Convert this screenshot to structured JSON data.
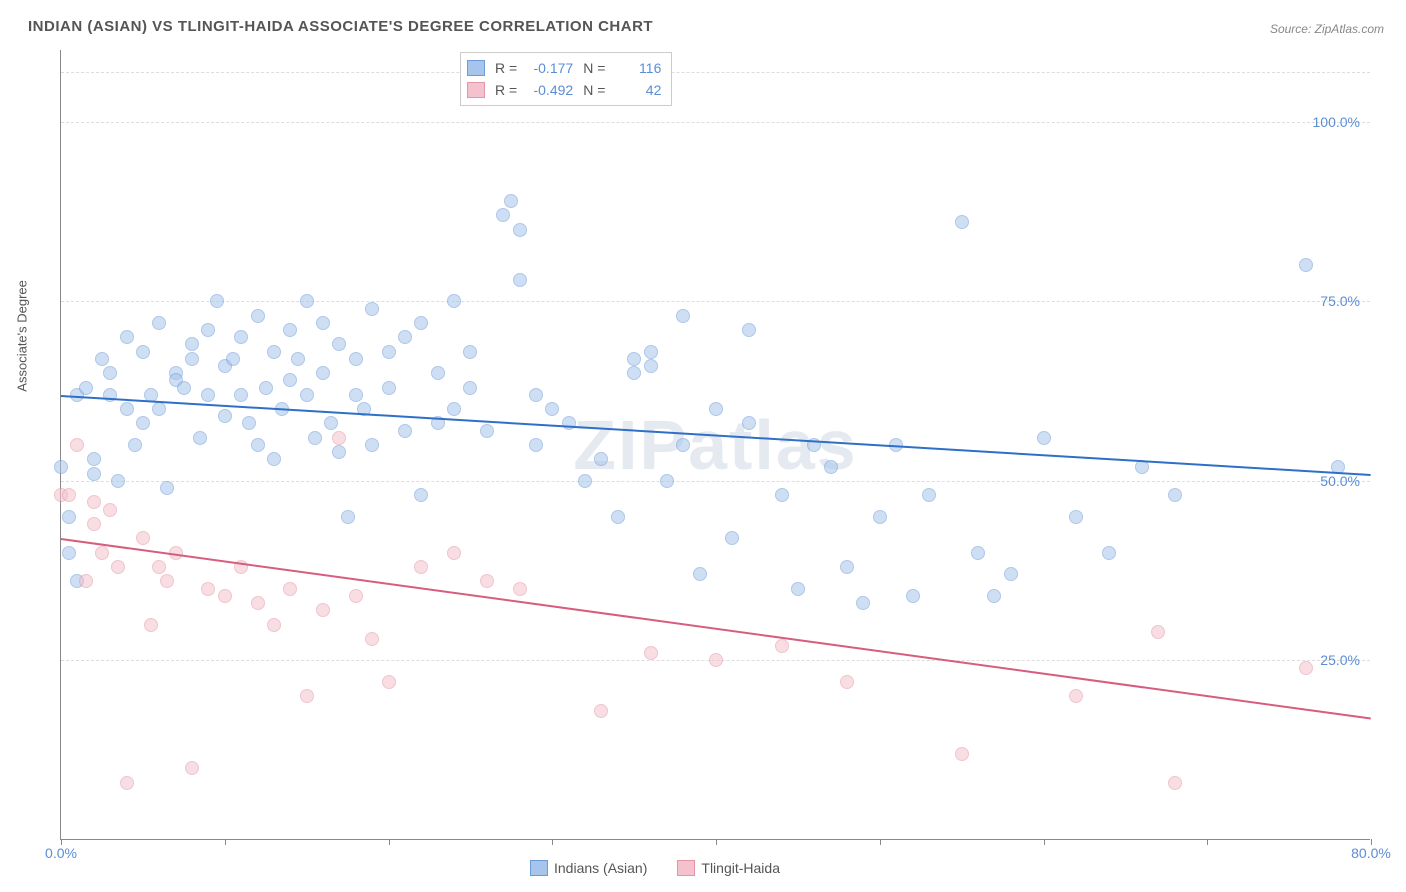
{
  "title": "INDIAN (ASIAN) VS TLINGIT-HAIDA ASSOCIATE'S DEGREE CORRELATION CHART",
  "source_prefix": "Source: ",
  "source_name": "ZipAtlas.com",
  "y_axis_label": "Associate's Degree",
  "watermark": "ZIPatlas",
  "chart": {
    "type": "scatter",
    "xlim": [
      0,
      80
    ],
    "ylim": [
      0,
      110
    ],
    "x_ticks": [
      0,
      10,
      20,
      30,
      40,
      50,
      60,
      70,
      80
    ],
    "x_tick_labels": {
      "0": "0.0%",
      "80": "80.0%"
    },
    "y_ticks": [
      25,
      50,
      75,
      100
    ],
    "y_tick_labels": {
      "25": "25.0%",
      "50": "50.0%",
      "75": "75.0%",
      "100": "100.0%"
    },
    "background_color": "#ffffff",
    "grid_color": "#dddddd",
    "axis_color": "#888888",
    "tick_label_color": "#5b8dd6",
    "point_radius": 7,
    "point_opacity": 0.55
  },
  "series": [
    {
      "name": "Indians (Asian)",
      "color_fill": "#a7c5ec",
      "color_stroke": "#6d9bd8",
      "trend_color": "#2f6fc7",
      "R": "-0.177",
      "N": "116",
      "trend": {
        "x1": 0,
        "y1": 62,
        "x2": 80,
        "y2": 51
      },
      "points": [
        [
          0,
          52
        ],
        [
          0.5,
          45
        ],
        [
          0.5,
          40
        ],
        [
          1,
          62
        ],
        [
          1,
          36
        ],
        [
          1.5,
          63
        ],
        [
          2,
          53
        ],
        [
          2,
          51
        ],
        [
          2.5,
          67
        ],
        [
          3,
          62
        ],
        [
          3,
          65
        ],
        [
          3.5,
          50
        ],
        [
          4,
          70
        ],
        [
          4,
          60
        ],
        [
          4.5,
          55
        ],
        [
          5,
          68
        ],
        [
          5,
          58
        ],
        [
          5.5,
          62
        ],
        [
          6,
          72
        ],
        [
          6,
          60
        ],
        [
          6.5,
          49
        ],
        [
          7,
          65
        ],
        [
          7,
          64
        ],
        [
          7.5,
          63
        ],
        [
          8,
          67
        ],
        [
          8,
          69
        ],
        [
          8.5,
          56
        ],
        [
          9,
          71
        ],
        [
          9,
          62
        ],
        [
          9.5,
          75
        ],
        [
          10,
          59
        ],
        [
          10,
          66
        ],
        [
          10.5,
          67
        ],
        [
          11,
          62
        ],
        [
          11,
          70
        ],
        [
          11.5,
          58
        ],
        [
          12,
          73
        ],
        [
          12,
          55
        ],
        [
          12.5,
          63
        ],
        [
          13,
          68
        ],
        [
          13,
          53
        ],
        [
          13.5,
          60
        ],
        [
          14,
          71
        ],
        [
          14,
          64
        ],
        [
          14.5,
          67
        ],
        [
          15,
          75
        ],
        [
          15,
          62
        ],
        [
          15.5,
          56
        ],
        [
          16,
          72
        ],
        [
          16,
          65
        ],
        [
          16.5,
          58
        ],
        [
          17,
          69
        ],
        [
          17,
          54
        ],
        [
          17.5,
          45
        ],
        [
          18,
          62
        ],
        [
          18,
          67
        ],
        [
          18.5,
          60
        ],
        [
          19,
          74
        ],
        [
          19,
          55
        ],
        [
          20,
          68
        ],
        [
          20,
          63
        ],
        [
          21,
          57
        ],
        [
          21,
          70
        ],
        [
          22,
          72
        ],
        [
          22,
          48
        ],
        [
          23,
          65
        ],
        [
          23,
          58
        ],
        [
          24,
          75
        ],
        [
          24,
          60
        ],
        [
          25,
          63
        ],
        [
          25,
          68
        ],
        [
          26,
          57
        ],
        [
          27,
          87
        ],
        [
          27.5,
          89
        ],
        [
          28,
          85
        ],
        [
          28,
          78
        ],
        [
          29,
          55
        ],
        [
          29,
          62
        ],
        [
          30,
          60
        ],
        [
          31,
          58
        ],
        [
          32,
          50
        ],
        [
          33,
          53
        ],
        [
          34,
          45
        ],
        [
          35,
          65
        ],
        [
          35,
          67
        ],
        [
          36,
          66
        ],
        [
          36,
          68
        ],
        [
          37,
          50
        ],
        [
          38,
          55
        ],
        [
          38,
          73
        ],
        [
          39,
          37
        ],
        [
          40,
          60
        ],
        [
          41,
          42
        ],
        [
          42,
          71
        ],
        [
          42,
          58
        ],
        [
          44,
          48
        ],
        [
          45,
          35
        ],
        [
          46,
          55
        ],
        [
          47,
          52
        ],
        [
          48,
          38
        ],
        [
          49,
          33
        ],
        [
          50,
          45
        ],
        [
          51,
          55
        ],
        [
          52,
          34
        ],
        [
          53,
          48
        ],
        [
          55,
          86
        ],
        [
          56,
          40
        ],
        [
          57,
          34
        ],
        [
          58,
          37
        ],
        [
          60,
          56
        ],
        [
          62,
          45
        ],
        [
          64,
          40
        ],
        [
          66,
          52
        ],
        [
          68,
          48
        ],
        [
          76,
          80
        ],
        [
          78,
          52
        ]
      ]
    },
    {
      "name": "Tlingit-Haida",
      "color_fill": "#f4c2cd",
      "color_stroke": "#e495a8",
      "trend_color": "#d75c7d",
      "R": "-0.492",
      "N": "42",
      "trend": {
        "x1": 0,
        "y1": 42,
        "x2": 80,
        "y2": 17
      },
      "points": [
        [
          0,
          48
        ],
        [
          0.5,
          48
        ],
        [
          1,
          55
        ],
        [
          1.5,
          36
        ],
        [
          2,
          47
        ],
        [
          2,
          44
        ],
        [
          2.5,
          40
        ],
        [
          3,
          46
        ],
        [
          3.5,
          38
        ],
        [
          4,
          8
        ],
        [
          5,
          42
        ],
        [
          5.5,
          30
        ],
        [
          6,
          38
        ],
        [
          6.5,
          36
        ],
        [
          7,
          40
        ],
        [
          8,
          10
        ],
        [
          9,
          35
        ],
        [
          10,
          34
        ],
        [
          11,
          38
        ],
        [
          12,
          33
        ],
        [
          13,
          30
        ],
        [
          14,
          35
        ],
        [
          15,
          20
        ],
        [
          16,
          32
        ],
        [
          17,
          56
        ],
        [
          18,
          34
        ],
        [
          19,
          28
        ],
        [
          20,
          22
        ],
        [
          22,
          38
        ],
        [
          24,
          40
        ],
        [
          26,
          36
        ],
        [
          28,
          35
        ],
        [
          33,
          18
        ],
        [
          36,
          26
        ],
        [
          40,
          25
        ],
        [
          44,
          27
        ],
        [
          48,
          22
        ],
        [
          55,
          12
        ],
        [
          62,
          20
        ],
        [
          67,
          29
        ],
        [
          68,
          8
        ],
        [
          76,
          24
        ]
      ]
    }
  ],
  "legend_labels": {
    "R": "R =",
    "N": "N ="
  }
}
